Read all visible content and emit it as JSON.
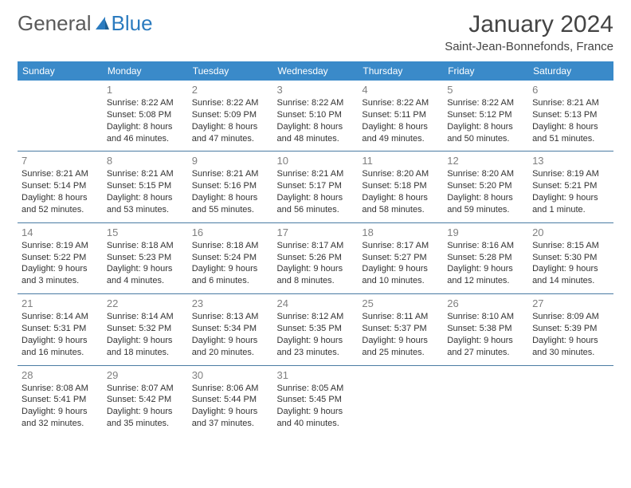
{
  "logo": {
    "text1": "General",
    "text2": "Blue"
  },
  "title": "January 2024",
  "location": "Saint-Jean-Bonnefonds, France",
  "colors": {
    "header_bg": "#3a8ac9",
    "header_text": "#ffffff",
    "daynum": "#808080",
    "cell_text": "#333333",
    "rule": "#4a7ba3",
    "logo_gray": "#5a5a5a",
    "logo_blue": "#2b7bbf",
    "page_bg": "#ffffff"
  },
  "weekdays": [
    "Sunday",
    "Monday",
    "Tuesday",
    "Wednesday",
    "Thursday",
    "Friday",
    "Saturday"
  ],
  "grid": {
    "first_weekday_index": 1,
    "days_in_month": 31
  },
  "days": {
    "1": {
      "sunrise": "8:22 AM",
      "sunset": "5:08 PM",
      "daylight": "8 hours and 46 minutes."
    },
    "2": {
      "sunrise": "8:22 AM",
      "sunset": "5:09 PM",
      "daylight": "8 hours and 47 minutes."
    },
    "3": {
      "sunrise": "8:22 AM",
      "sunset": "5:10 PM",
      "daylight": "8 hours and 48 minutes."
    },
    "4": {
      "sunrise": "8:22 AM",
      "sunset": "5:11 PM",
      "daylight": "8 hours and 49 minutes."
    },
    "5": {
      "sunrise": "8:22 AM",
      "sunset": "5:12 PM",
      "daylight": "8 hours and 50 minutes."
    },
    "6": {
      "sunrise": "8:21 AM",
      "sunset": "5:13 PM",
      "daylight": "8 hours and 51 minutes."
    },
    "7": {
      "sunrise": "8:21 AM",
      "sunset": "5:14 PM",
      "daylight": "8 hours and 52 minutes."
    },
    "8": {
      "sunrise": "8:21 AM",
      "sunset": "5:15 PM",
      "daylight": "8 hours and 53 minutes."
    },
    "9": {
      "sunrise": "8:21 AM",
      "sunset": "5:16 PM",
      "daylight": "8 hours and 55 minutes."
    },
    "10": {
      "sunrise": "8:21 AM",
      "sunset": "5:17 PM",
      "daylight": "8 hours and 56 minutes."
    },
    "11": {
      "sunrise": "8:20 AM",
      "sunset": "5:18 PM",
      "daylight": "8 hours and 58 minutes."
    },
    "12": {
      "sunrise": "8:20 AM",
      "sunset": "5:20 PM",
      "daylight": "8 hours and 59 minutes."
    },
    "13": {
      "sunrise": "8:19 AM",
      "sunset": "5:21 PM",
      "daylight": "9 hours and 1 minute."
    },
    "14": {
      "sunrise": "8:19 AM",
      "sunset": "5:22 PM",
      "daylight": "9 hours and 3 minutes."
    },
    "15": {
      "sunrise": "8:18 AM",
      "sunset": "5:23 PM",
      "daylight": "9 hours and 4 minutes."
    },
    "16": {
      "sunrise": "8:18 AM",
      "sunset": "5:24 PM",
      "daylight": "9 hours and 6 minutes."
    },
    "17": {
      "sunrise": "8:17 AM",
      "sunset": "5:26 PM",
      "daylight": "9 hours and 8 minutes."
    },
    "18": {
      "sunrise": "8:17 AM",
      "sunset": "5:27 PM",
      "daylight": "9 hours and 10 minutes."
    },
    "19": {
      "sunrise": "8:16 AM",
      "sunset": "5:28 PM",
      "daylight": "9 hours and 12 minutes."
    },
    "20": {
      "sunrise": "8:15 AM",
      "sunset": "5:30 PM",
      "daylight": "9 hours and 14 minutes."
    },
    "21": {
      "sunrise": "8:14 AM",
      "sunset": "5:31 PM",
      "daylight": "9 hours and 16 minutes."
    },
    "22": {
      "sunrise": "8:14 AM",
      "sunset": "5:32 PM",
      "daylight": "9 hours and 18 minutes."
    },
    "23": {
      "sunrise": "8:13 AM",
      "sunset": "5:34 PM",
      "daylight": "9 hours and 20 minutes."
    },
    "24": {
      "sunrise": "8:12 AM",
      "sunset": "5:35 PM",
      "daylight": "9 hours and 23 minutes."
    },
    "25": {
      "sunrise": "8:11 AM",
      "sunset": "5:37 PM",
      "daylight": "9 hours and 25 minutes."
    },
    "26": {
      "sunrise": "8:10 AM",
      "sunset": "5:38 PM",
      "daylight": "9 hours and 27 minutes."
    },
    "27": {
      "sunrise": "8:09 AM",
      "sunset": "5:39 PM",
      "daylight": "9 hours and 30 minutes."
    },
    "28": {
      "sunrise": "8:08 AM",
      "sunset": "5:41 PM",
      "daylight": "9 hours and 32 minutes."
    },
    "29": {
      "sunrise": "8:07 AM",
      "sunset": "5:42 PM",
      "daylight": "9 hours and 35 minutes."
    },
    "30": {
      "sunrise": "8:06 AM",
      "sunset": "5:44 PM",
      "daylight": "9 hours and 37 minutes."
    },
    "31": {
      "sunrise": "8:05 AM",
      "sunset": "5:45 PM",
      "daylight": "9 hours and 40 minutes."
    }
  },
  "labels": {
    "sunrise": "Sunrise:",
    "sunset": "Sunset:",
    "daylight": "Daylight:"
  }
}
